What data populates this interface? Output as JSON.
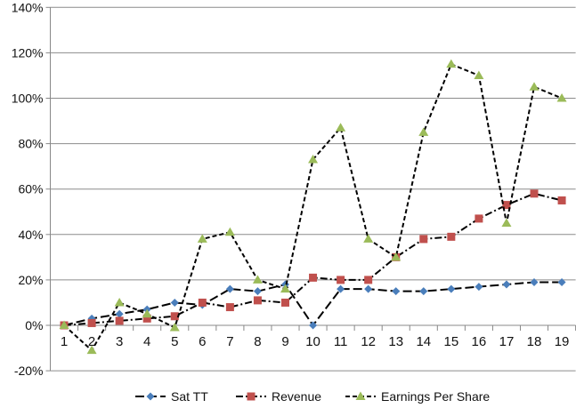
{
  "chart_data": {
    "type": "line",
    "title": "",
    "xlabel": "",
    "ylabel": "",
    "categories": [
      "1",
      "2",
      "3",
      "4",
      "5",
      "6",
      "7",
      "8",
      "9",
      "10",
      "11",
      "12",
      "13",
      "14",
      "15",
      "16",
      "17",
      "18",
      "19"
    ],
    "ylim": [
      -20,
      140
    ],
    "yticks": [
      "-20%",
      "0%",
      "20%",
      "40%",
      "60%",
      "80%",
      "100%",
      "120%",
      "140%"
    ],
    "ytick_values": [
      -20,
      0,
      20,
      40,
      60,
      80,
      100,
      120,
      140
    ],
    "grid": true,
    "legend": "bottom",
    "series": [
      {
        "name": "Sat TT",
        "color": "#4a7ebb",
        "marker": "diamond",
        "dash": "10,4",
        "values": [
          0,
          3,
          5,
          7,
          10,
          9,
          16,
          15,
          18,
          0,
          16,
          16,
          15,
          15,
          16,
          17,
          18,
          19,
          19
        ]
      },
      {
        "name": "Revenue",
        "color": "#c0504d",
        "marker": "square",
        "dash": "8,3,2,3",
        "values": [
          0,
          1,
          2,
          3,
          4,
          10,
          8,
          11,
          10,
          21,
          20,
          20,
          30,
          38,
          39,
          47,
          53,
          58,
          55
        ]
      },
      {
        "name": "Earnings Per Share",
        "color": "#9bbb59",
        "marker": "triangle",
        "dash": "5,3",
        "values": [
          0,
          -11,
          10,
          5,
          -1,
          38,
          41,
          20,
          16,
          73,
          87,
          38,
          30,
          85,
          115,
          110,
          45,
          105,
          100
        ]
      }
    ]
  }
}
